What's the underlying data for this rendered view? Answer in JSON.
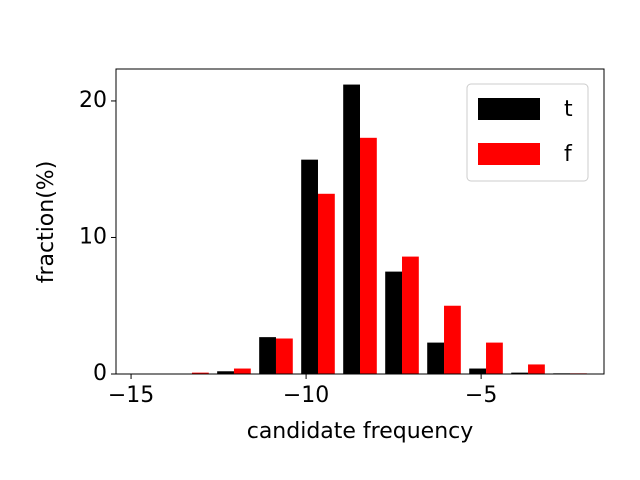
{
  "chart_data": {
    "type": "histogram",
    "x_label": "candidate frequency",
    "y_label": "fraction(%)",
    "bins": [
      -13.86,
      -12.66,
      -11.46,
      -10.26,
      -9.06,
      -7.86,
      -6.66,
      -5.46,
      -4.26,
      -3.06,
      -1.86
    ],
    "series": [
      {
        "name": "t",
        "color": "#000000",
        "values": [
          0,
          0.2,
          2.7,
          15.7,
          21.2,
          7.5,
          2.3,
          0.4,
          0.1,
          0.05
        ]
      },
      {
        "name": "f",
        "color": "#ff0000",
        "values": [
          0.1,
          0.4,
          2.6,
          13.2,
          17.3,
          8.6,
          5.0,
          2.3,
          0.7,
          0.05
        ]
      }
    ],
    "xlim": [
      -15.43,
      -1.49
    ],
    "ylim": [
      0,
      22.34
    ],
    "xticks": [
      {
        "value": -15,
        "label": "−15"
      },
      {
        "value": -10,
        "label": "−10"
      },
      {
        "value": -5,
        "label": "−5"
      }
    ],
    "yticks": [
      0,
      10,
      20
    ],
    "legend": "upper right"
  }
}
